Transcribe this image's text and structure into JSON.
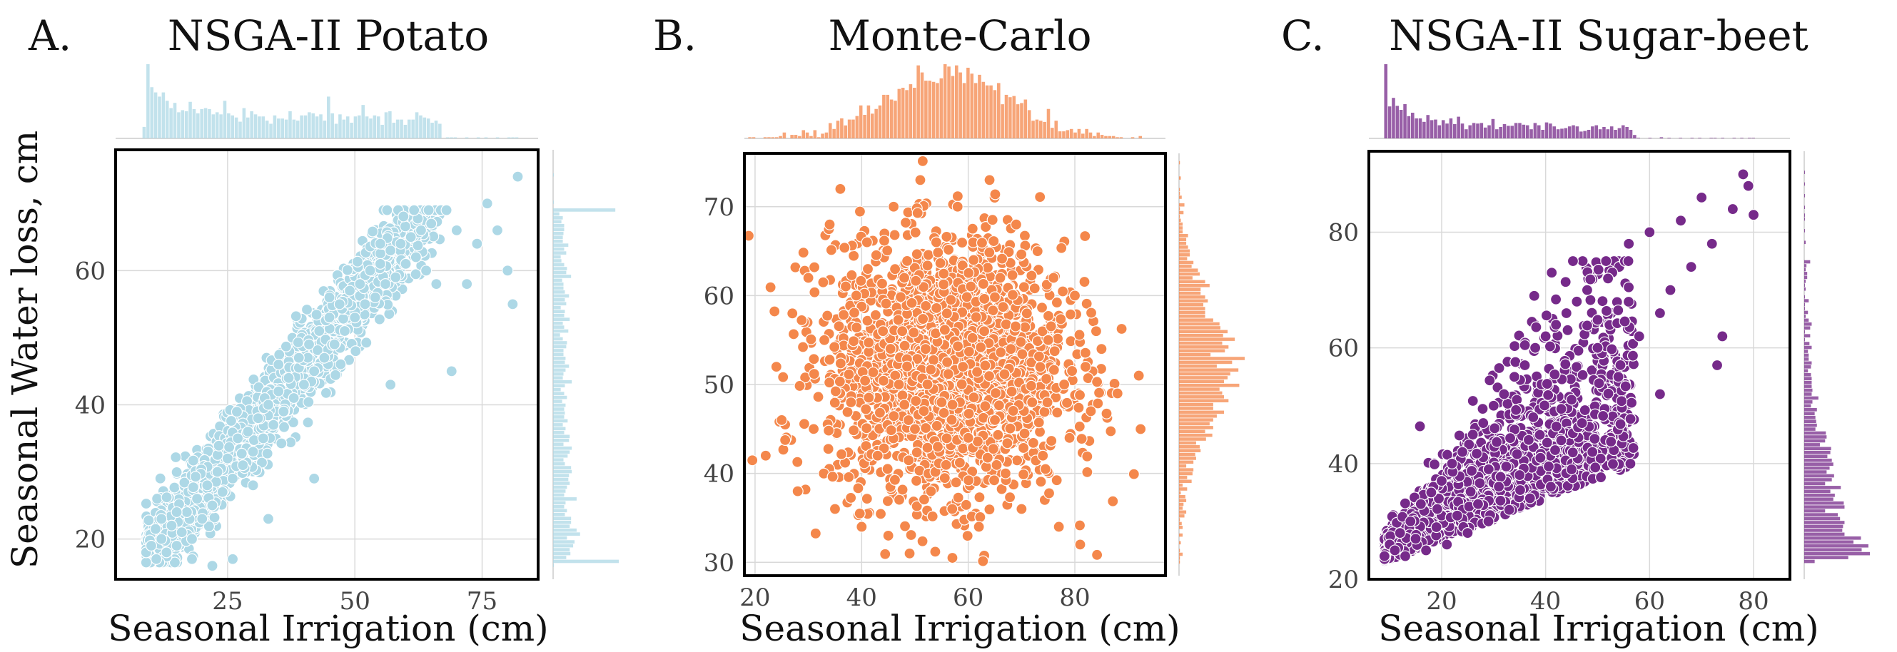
{
  "figure": {
    "ylabel": "Seasonal Water loss, cm"
  },
  "chart_data": [
    {
      "type": "scatter",
      "panel_letter": "A.",
      "title": "NSGA-II Potato",
      "xlabel": "Seasonal Irrigation (cm)",
      "ylabel": "Seasonal Water loss, cm",
      "color": "#add8e6",
      "xlim": [
        3,
        86
      ],
      "ylim": [
        14,
        78
      ],
      "xticks": [
        25,
        50,
        75
      ],
      "yticks": [
        20,
        40,
        60
      ],
      "grid": true,
      "marginal_histograms": true,
      "point_pattern": "dense positively correlated band from (10, 17) to (65, 68), outliers up to (82, 74)",
      "series": [
        {
          "values": [
            [
              9,
              18
            ],
            [
              10,
              19
            ],
            [
              11,
              17
            ],
            [
              12,
              20
            ],
            [
              13,
              18
            ],
            [
              14,
              22
            ],
            [
              15,
              19
            ],
            [
              16,
              21
            ],
            [
              17,
              24
            ],
            [
              18,
              20
            ],
            [
              19,
              26
            ],
            [
              20,
              23
            ],
            [
              21,
              28
            ],
            [
              22,
              25
            ],
            [
              23,
              30
            ],
            [
              24,
              27
            ],
            [
              25,
              32
            ],
            [
              26,
              29
            ],
            [
              27,
              35
            ],
            [
              28,
              31
            ],
            [
              29,
              36
            ],
            [
              30,
              33
            ],
            [
              31,
              38
            ],
            [
              32,
              35
            ],
            [
              33,
              40
            ],
            [
              34,
              37
            ],
            [
              35,
              42
            ],
            [
              36,
              39
            ],
            [
              37,
              44
            ],
            [
              38,
              41
            ],
            [
              39,
              47
            ],
            [
              40,
              43
            ],
            [
              41,
              49
            ],
            [
              42,
              45
            ],
            [
              43,
              51
            ],
            [
              44,
              47
            ],
            [
              45,
              53
            ],
            [
              46,
              49
            ],
            [
              47,
              55
            ],
            [
              48,
              51
            ],
            [
              49,
              57
            ],
            [
              50,
              53
            ],
            [
              51,
              58
            ],
            [
              52,
              55
            ],
            [
              53,
              60
            ],
            [
              54,
              56
            ],
            [
              55,
              61
            ],
            [
              56,
              58
            ],
            [
              57,
              63
            ],
            [
              58,
              59
            ],
            [
              59,
              64
            ],
            [
              60,
              61
            ],
            [
              61,
              65
            ],
            [
              62,
              62
            ],
            [
              63,
              66
            ],
            [
              64,
              60
            ],
            [
              65,
              67
            ],
            [
              66,
              58
            ],
            [
              68,
              69
            ],
            [
              70,
              66
            ],
            [
              72,
              58
            ],
            [
              74,
              64
            ],
            [
              76,
              70
            ],
            [
              78,
              66
            ],
            [
              80,
              60
            ],
            [
              81,
              55
            ],
            [
              82,
              74
            ],
            [
              69,
              45
            ],
            [
              57,
              43
            ],
            [
              42,
              29
            ],
            [
              33,
              23
            ],
            [
              30,
              28
            ],
            [
              18,
              17
            ],
            [
              22,
              16
            ],
            [
              26,
              17
            ],
            [
              15,
              24
            ],
            [
              12,
              23
            ],
            [
              35,
              46
            ],
            [
              45,
              56
            ],
            [
              55,
              64
            ]
          ]
        }
      ]
    },
    {
      "type": "scatter",
      "panel_letter": "B.",
      "title": "Monte-Carlo",
      "xlabel": "Seasonal Irrigation (cm)",
      "ylabel": "",
      "color": "#f4874b",
      "xlim": [
        18,
        97
      ],
      "ylim": [
        28.5,
        76
      ],
      "xticks": [
        20,
        40,
        60,
        80
      ],
      "yticks": [
        30,
        40,
        50,
        60,
        70
      ],
      "grid": true,
      "marginal_histograms": true,
      "point_pattern": "roughly circular cloud centered at (56, 52), spanning x 22-92 and y 31-73",
      "series": [
        {
          "values": [
            [
              22,
              42
            ],
            [
              24,
              52
            ],
            [
              25,
              46
            ],
            [
              27,
              58
            ],
            [
              28,
              38
            ],
            [
              30,
              62
            ],
            [
              31,
              45
            ],
            [
              33,
              55
            ],
            [
              34,
              68
            ],
            [
              35,
              36
            ],
            [
              36,
              72
            ],
            [
              38,
              48
            ],
            [
              39,
              60
            ],
            [
              40,
              34
            ],
            [
              41,
              66
            ],
            [
              43,
              42
            ],
            [
              44,
              56
            ],
            [
              45,
              33
            ],
            [
              46,
              70
            ],
            [
              47,
              50
            ],
            [
              48,
              62
            ],
            [
              49,
              31
            ],
            [
              50,
              45
            ],
            [
              51,
              73
            ],
            [
              52,
              54
            ],
            [
              53,
              38
            ],
            [
              54,
              66
            ],
            [
              55,
              48
            ],
            [
              56,
              58
            ],
            [
              57,
              36
            ],
            [
              58,
              70
            ],
            [
              59,
              52
            ],
            [
              60,
              44
            ],
            [
              61,
              64
            ],
            [
              62,
              34
            ],
            [
              63,
              56
            ],
            [
              64,
              73
            ],
            [
              65,
              46
            ],
            [
              66,
              62
            ],
            [
              67,
              40
            ],
            [
              68,
              54
            ],
            [
              69,
              68
            ],
            [
              70,
              36
            ],
            [
              71,
              58
            ],
            [
              72,
              48
            ],
            [
              73,
              65
            ],
            [
              74,
              42
            ],
            [
              75,
              55
            ],
            [
              76,
              62
            ],
            [
              77,
              34
            ],
            [
              78,
              50
            ],
            [
              79,
              44
            ],
            [
              80,
              60
            ],
            [
              81,
              32
            ],
            [
              82,
              52
            ],
            [
              83,
              47
            ],
            [
              84,
              56
            ],
            [
              85,
              54
            ],
            [
              88,
              49
            ],
            [
              92,
              51
            ]
          ]
        }
      ]
    },
    {
      "type": "scatter",
      "panel_letter": "C.",
      "title": "NSGA-II Sugar-beet",
      "xlabel": "Seasonal Irrigation (cm)",
      "ylabel": "",
      "color": "#762a8a",
      "xlim": [
        6,
        87
      ],
      "ylim": [
        20,
        94
      ],
      "xticks": [
        20,
        40,
        60,
        80
      ],
      "yticks": [
        20,
        40,
        60,
        80
      ],
      "grid": true,
      "marginal_histograms": true,
      "point_pattern": "dense wedge starting near (10, 24), widening upward, sparse upper tail to (80, 90)",
      "series": [
        {
          "values": [
            [
              9,
              24
            ],
            [
              10,
              26
            ],
            [
              11,
              25
            ],
            [
              12,
              28
            ],
            [
              13,
              24
            ],
            [
              14,
              30
            ],
            [
              15,
              27
            ],
            [
              16,
              33
            ],
            [
              17,
              25
            ],
            [
              18,
              35
            ],
            [
              19,
              29
            ],
            [
              20,
              37
            ],
            [
              21,
              26
            ],
            [
              22,
              40
            ],
            [
              23,
              31
            ],
            [
              24,
              42
            ],
            [
              25,
              28
            ],
            [
              26,
              45
            ],
            [
              27,
              33
            ],
            [
              28,
              47
            ],
            [
              29,
              30
            ],
            [
              30,
              50
            ],
            [
              31,
              36
            ],
            [
              32,
              52
            ],
            [
              33,
              32
            ],
            [
              34,
              55
            ],
            [
              35,
              38
            ],
            [
              36,
              57
            ],
            [
              37,
              34
            ],
            [
              38,
              60
            ],
            [
              39,
              41
            ],
            [
              40,
              62
            ],
            [
              41,
              36
            ],
            [
              42,
              64
            ],
            [
              43,
              44
            ],
            [
              44,
              66
            ],
            [
              45,
              39
            ],
            [
              46,
              68
            ],
            [
              47,
              47
            ],
            [
              48,
              70
            ],
            [
              49,
              42
            ],
            [
              50,
              60
            ],
            [
              52,
              72
            ],
            [
              54,
              55
            ],
            [
              56,
              78
            ],
            [
              58,
              62
            ],
            [
              60,
              80
            ],
            [
              62,
              66
            ],
            [
              64,
              70
            ],
            [
              66,
              82
            ],
            [
              68,
              74
            ],
            [
              70,
              86
            ],
            [
              72,
              78
            ],
            [
              74,
              62
            ],
            [
              76,
              84
            ],
            [
              78,
              90
            ],
            [
              79,
              88
            ],
            [
              80,
              83
            ],
            [
              62,
              52
            ],
            [
              73,
              57
            ]
          ]
        }
      ]
    }
  ]
}
